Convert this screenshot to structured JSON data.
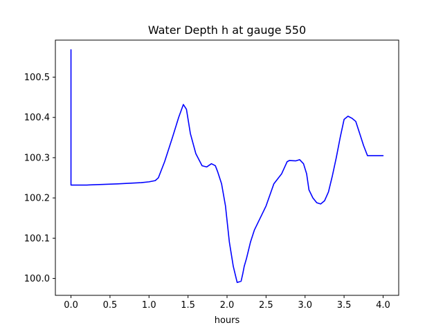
{
  "chart_data": {
    "type": "line",
    "title": "Water Depth h at gauge 550",
    "xlabel": "hours",
    "ylabel": "",
    "xlim": [
      -0.2,
      4.2
    ],
    "ylim": [
      99.958,
      100.592
    ],
    "grid": false,
    "x_ticks": [
      0.0,
      0.5,
      1.0,
      1.5,
      2.0,
      2.5,
      3.0,
      3.5,
      4.0
    ],
    "x_tick_labels": [
      "0.0",
      "0.5",
      "1.0",
      "1.5",
      "2.0",
      "2.5",
      "3.0",
      "3.5",
      "4.0"
    ],
    "y_ticks": [
      100.0,
      100.1,
      100.2,
      100.3,
      100.4,
      100.5
    ],
    "y_tick_labels": [
      "100.0",
      "100.1",
      "100.2",
      "100.3",
      "100.4",
      "100.5"
    ],
    "series": [
      {
        "color": "#0000ff",
        "x": [
          0.0,
          0.0,
          0.01,
          0.2,
          0.6,
          0.9,
          1.0,
          1.08,
          1.12,
          1.2,
          1.3,
          1.38,
          1.44,
          1.48,
          1.53,
          1.6,
          1.68,
          1.74,
          1.8,
          1.85,
          1.88,
          1.93,
          1.98,
          2.03,
          2.08,
          2.13,
          2.18,
          2.2,
          2.22,
          2.25,
          2.3,
          2.35,
          2.4,
          2.45,
          2.5,
          2.6,
          2.7,
          2.77,
          2.8,
          2.88,
          2.93,
          2.98,
          3.02,
          3.05,
          3.1,
          3.15,
          3.2,
          3.25,
          3.3,
          3.35,
          3.4,
          3.45,
          3.5,
          3.55,
          3.6,
          3.65,
          3.7,
          3.75,
          3.8,
          3.85,
          3.9,
          3.95,
          4.0
        ],
        "y": [
          100.568,
          100.232,
          100.232,
          100.232,
          100.235,
          100.238,
          100.24,
          100.243,
          100.25,
          100.29,
          100.35,
          100.4,
          100.432,
          100.42,
          100.36,
          100.31,
          100.28,
          100.277,
          100.285,
          100.28,
          100.265,
          100.235,
          100.18,
          100.09,
          100.03,
          99.99,
          99.993,
          100.01,
          100.03,
          100.05,
          100.09,
          100.12,
          100.14,
          100.16,
          100.18,
          100.235,
          100.26,
          100.29,
          100.293,
          100.292,
          100.295,
          100.285,
          100.26,
          100.22,
          100.2,
          100.188,
          100.185,
          100.193,
          100.215,
          100.255,
          100.3,
          100.35,
          100.395,
          100.403,
          100.398,
          100.39,
          100.36,
          100.33,
          100.305,
          100.305,
          100.305,
          100.305,
          100.305
        ]
      }
    ]
  }
}
